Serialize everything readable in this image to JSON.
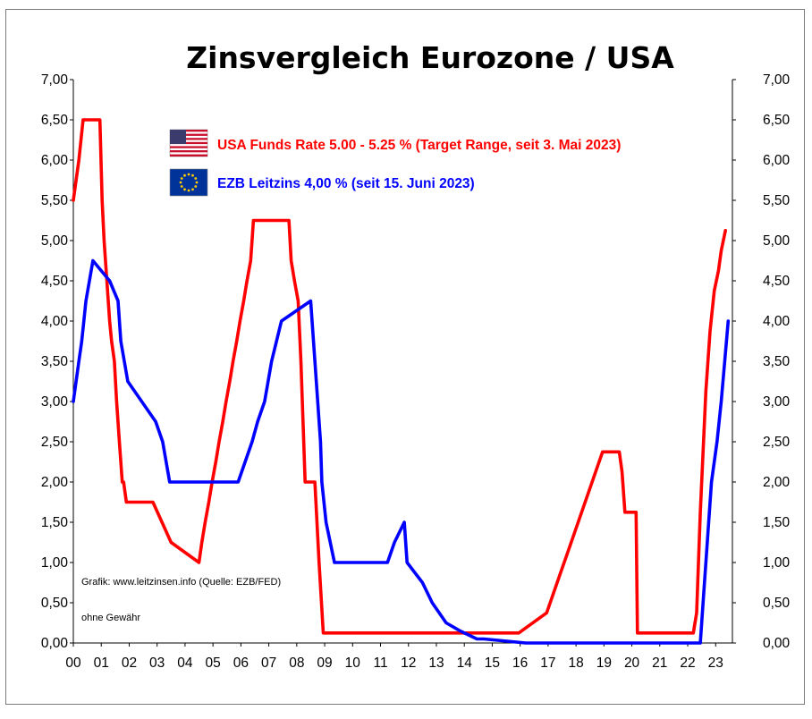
{
  "chart_data": {
    "type": "line",
    "title": "Zinsvergleich Eurozone / USA",
    "xlabel": "",
    "ylabel": "",
    "xlim": [
      2000.0,
      2023.6
    ],
    "ylim": [
      0,
      7
    ],
    "grid": false,
    "legend_position": "top-center",
    "x_ticks": [
      "00",
      "01",
      "02",
      "03",
      "04",
      "05",
      "06",
      "07",
      "08",
      "09",
      "10",
      "11",
      "12",
      "13",
      "14",
      "15",
      "16",
      "17",
      "18",
      "19",
      "20",
      "21",
      "22",
      "23"
    ],
    "y_ticks": [
      "0,00",
      "0,50",
      "1,00",
      "1,50",
      "2,00",
      "2,50",
      "3,00",
      "3,50",
      "4,00",
      "4,50",
      "5,00",
      "5,50",
      "6,00",
      "6,50",
      "7,00"
    ],
    "annotations": [
      "Grafik: www.leitzinsen.info (Quelle: EZB/FED)",
      "ohne Gewähr"
    ],
    "series": [
      {
        "name": "USA Funds Rate 5.00 - 5.25 % (Target Range, seit 3. Mai 2023)",
        "color": "#ff0000",
        "icon": "us-flag-icon",
        "x": [
          2000.0,
          2000.1,
          2000.2,
          2000.35,
          2000.65,
          2000.95,
          2001.03,
          2001.1,
          2001.2,
          2001.3,
          2001.37,
          2001.47,
          2001.55,
          2001.65,
          2001.75,
          2001.8,
          2001.9,
          2002.85,
          2003.5,
          2004.5,
          2004.6,
          2004.72,
          2004.85,
          2004.97,
          2005.1,
          2005.22,
          2005.35,
          2005.47,
          2005.6,
          2005.72,
          2005.85,
          2005.97,
          2006.1,
          2006.22,
          2006.35,
          2006.45,
          2007.7,
          2007.72,
          2007.8,
          2007.92,
          2008.05,
          2008.15,
          2008.3,
          2008.65,
          2008.8,
          2008.95,
          2015.95,
          2016.95,
          2017.2,
          2017.45,
          2017.7,
          2017.95,
          2018.2,
          2018.45,
          2018.7,
          2018.95,
          2019.55,
          2019.65,
          2019.75,
          2020.15,
          2020.2,
          2022.2,
          2022.32,
          2022.45,
          2022.55,
          2022.65,
          2022.8,
          2022.95,
          2023.1,
          2023.2,
          2023.35
        ],
        "values": [
          5.5,
          5.75,
          6.0,
          6.5,
          6.5,
          6.5,
          5.5,
          5.0,
          4.5,
          4.0,
          3.75,
          3.5,
          3.0,
          2.5,
          2.0,
          2.0,
          1.75,
          1.75,
          1.25,
          1.0,
          1.25,
          1.5,
          1.75,
          2.0,
          2.25,
          2.5,
          2.75,
          3.0,
          3.25,
          3.5,
          3.75,
          4.0,
          4.25,
          4.5,
          4.75,
          5.25,
          5.25,
          5.25,
          4.75,
          4.5,
          4.25,
          3.5,
          2.0,
          2.0,
          1.0,
          0.125,
          0.125,
          0.375,
          0.625,
          0.875,
          1.125,
          1.375,
          1.625,
          1.875,
          2.125,
          2.375,
          2.375,
          2.125,
          1.625,
          1.625,
          0.125,
          0.125,
          0.375,
          1.625,
          2.375,
          3.125,
          3.875,
          4.375,
          4.625,
          4.875,
          5.125
        ]
      },
      {
        "name": "EZB Leitzins 4,00 %  (seit 15. Juni 2023)",
        "color": "#0000ff",
        "icon": "eu-flag-icon",
        "x": [
          2000.0,
          2000.1,
          2000.2,
          2000.3,
          2000.45,
          2000.7,
          2001.3,
          2001.6,
          2001.7,
          2001.95,
          2002.95,
          2003.2,
          2003.45,
          2005.9,
          2006.15,
          2006.4,
          2006.6,
          2006.85,
          2007.1,
          2007.45,
          2008.5,
          2008.7,
          2008.85,
          2008.9,
          2009.05,
          2009.2,
          2009.35,
          2011.25,
          2011.5,
          2011.85,
          2011.95,
          2012.5,
          2012.85,
          2013.35,
          2013.85,
          2014.45,
          2014.7,
          2016.2,
          2022.45,
          2022.55,
          2022.7,
          2022.85,
          2023.05,
          2023.2,
          2023.45
        ],
        "values": [
          3.0,
          3.25,
          3.5,
          3.75,
          4.25,
          4.75,
          4.5,
          4.25,
          3.75,
          3.25,
          2.75,
          2.5,
          2.0,
          2.0,
          2.25,
          2.5,
          2.75,
          3.0,
          3.5,
          4.0,
          4.25,
          3.25,
          2.5,
          2.0,
          1.5,
          1.25,
          1.0,
          1.0,
          1.25,
          1.5,
          1.0,
          0.75,
          0.5,
          0.25,
          0.15,
          0.05,
          0.05,
          0.0,
          0.0,
          0.5,
          1.25,
          2.0,
          2.5,
          3.0,
          4.0
        ]
      }
    ]
  }
}
